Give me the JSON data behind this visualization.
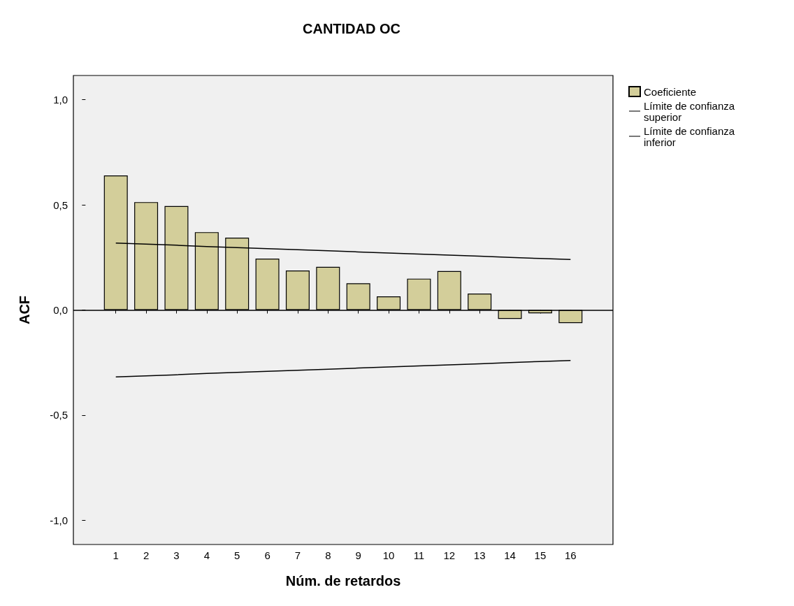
{
  "chart_data": {
    "type": "bar",
    "title": "CANTIDAD OC",
    "xlabel": "Núm. de retardos",
    "ylabel": "ACF",
    "x": [
      1,
      2,
      3,
      4,
      5,
      6,
      7,
      8,
      9,
      10,
      11,
      12,
      13,
      14,
      15,
      16
    ],
    "xlim": [
      -0.4,
      17.4
    ],
    "xticks": [
      1,
      2,
      3,
      4,
      5,
      6,
      7,
      8,
      9,
      10,
      11,
      12,
      13,
      14,
      15,
      16
    ],
    "ylim": [
      -1.115,
      1.115
    ],
    "yticks": [
      {
        "value": -1,
        "label": "-1,0"
      },
      {
        "value": -0.5,
        "label": "-0,5"
      },
      {
        "value": 0,
        "label": "0,0"
      },
      {
        "value": 0.5,
        "label": "0,5"
      },
      {
        "value": 1,
        "label": "1,0"
      }
    ],
    "series": [
      {
        "name": "Coeficiente",
        "color": "#d3ce9a",
        "values": [
          0.64,
          0.513,
          0.494,
          0.37,
          0.344,
          0.244,
          0.188,
          0.205,
          0.127,
          0.065,
          0.149,
          0.185,
          0.078,
          -0.042,
          -0.016,
          -0.062
        ]
      },
      {
        "name": "Límite de confianza superior",
        "type": "line",
        "color": "#000000",
        "values": [
          0.318,
          0.313,
          0.308,
          0.302,
          0.297,
          0.292,
          0.287,
          0.282,
          0.276,
          0.271,
          0.266,
          0.261,
          0.256,
          0.25,
          0.245,
          0.24
        ]
      },
      {
        "name": "Límite de confianza inferior",
        "type": "line",
        "color": "#000000",
        "values": [
          -0.318,
          -0.313,
          -0.308,
          -0.302,
          -0.297,
          -0.292,
          -0.287,
          -0.282,
          -0.276,
          -0.271,
          -0.266,
          -0.261,
          -0.256,
          -0.25,
          -0.245,
          -0.24
        ]
      }
    ],
    "ref_lines": [
      {
        "axis": "y",
        "value": 0,
        "color": "#000000"
      }
    ],
    "legend": "top right",
    "marker": "none",
    "grid": false
  }
}
